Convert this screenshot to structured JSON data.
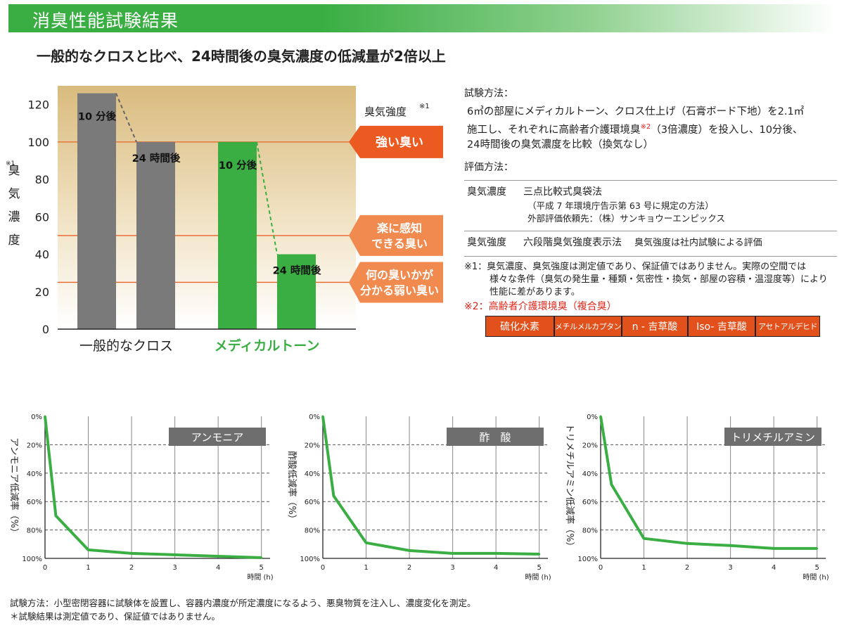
{
  "header": {
    "title": "消臭性能試験結果"
  },
  "headline": "一般的なクロスと比べ、24時間後の臭気濃度の低減量が2倍以上",
  "chart_data": [
    {
      "type": "bar",
      "y_label": "臭気濃度",
      "y_label_note": "※1",
      "ylim": [
        0,
        130
      ],
      "y_ticks": [
        "0",
        "20",
        "40",
        "60",
        "80",
        "100",
        "120"
      ],
      "groups": [
        {
          "name": "一般的なクロス",
          "color": "#7a7a7a",
          "bars": [
            {
              "label": "10 分後",
              "value": 126
            },
            {
              "label": "24 時間後",
              "value": 100
            }
          ]
        },
        {
          "name": "メディカルトーン",
          "color": "#3aae43",
          "bars": [
            {
              "label": "10 分後",
              "value": 100
            },
            {
              "label": "24 時間後",
              "value": 40
            }
          ]
        }
      ],
      "intensity_title": "臭気強度",
      "intensity_note": "※1",
      "intensity_levels": [
        {
          "value": 100,
          "line1": "強い臭い",
          "line2": ""
        },
        {
          "value": 50,
          "line1": "楽に感知",
          "line2": "できる臭い"
        },
        {
          "value": 25,
          "line1": "何の臭いかが",
          "line2": "分かる弱い臭い"
        }
      ]
    },
    {
      "type": "line",
      "title": "アンモニア",
      "ylabel": "アンモニア低減率（%）",
      "xlabel": "時間 (h)",
      "x_ticks": [
        "0",
        "1",
        "2",
        "3",
        "4",
        "5"
      ],
      "y_ticks": [
        "0%",
        "20%",
        "40%",
        "60%",
        "80%",
        "100%"
      ],
      "x": [
        0,
        0.25,
        1,
        2,
        3,
        4,
        5
      ],
      "y": [
        0,
        70,
        94,
        96.5,
        97.5,
        98.5,
        99.5
      ],
      "xlim": [
        0,
        5.2
      ],
      "ylim": [
        0,
        100
      ]
    },
    {
      "type": "line",
      "title": "酢　酸",
      "ylabel": "酢酸低減率（%）",
      "xlabel": "時間 (h)",
      "x_ticks": [
        "0",
        "1",
        "2",
        "3",
        "4",
        "5"
      ],
      "y_ticks": [
        "0%",
        "20%",
        "40%",
        "60%",
        "80%",
        "100%"
      ],
      "x": [
        0,
        0.25,
        1,
        2,
        3,
        4,
        5
      ],
      "y": [
        0,
        56,
        89,
        94.5,
        96.5,
        96.5,
        97
      ],
      "xlim": [
        0,
        5.2
      ],
      "ylim": [
        0,
        100
      ]
    },
    {
      "type": "line",
      "title": "トリメチルアミン",
      "ylabel": "トリメチルアミン低減率（%）",
      "xlabel": "時間 (h)",
      "x_ticks": [
        "0",
        "1",
        "2",
        "3",
        "4",
        "5"
      ],
      "y_ticks": [
        "0%",
        "20%",
        "40%",
        "60%",
        "80%",
        "100%"
      ],
      "x": [
        0,
        0.25,
        1,
        2,
        3,
        4,
        5
      ],
      "y": [
        0,
        48,
        86,
        89.5,
        91,
        93,
        93
      ],
      "xlim": [
        0,
        5.2
      ],
      "ylim": [
        0,
        100
      ]
    }
  ],
  "info": {
    "method_title": "試験方法：",
    "method_l1": "6㎥の部屋にメディカルトーン、クロス仕上げ（石膏ボード下地）を2.1㎡",
    "method_l2a": "施工し、それぞれに高齢者介護環境臭",
    "method_l2note": "※2",
    "method_l2b": "（3倍濃度）を投入し、10分後、",
    "method_l3": "24時間後の臭気濃度を比較（換気なし）",
    "eval_title": "評価方法：",
    "conc_key": "臭気濃度",
    "conc_val": "三点比較式臭袋法",
    "conc_sub1": "（平成 7 年環境庁告示第 63 号に規定の方法）",
    "conc_sub2": "外部評価依頼先：（株）サンキョウーエンピックス",
    "int_key": "臭気強度",
    "int_val": "六段階臭気強度表示法",
    "int_note": "臭気強度は社内試験による評価",
    "note1_mark": "※1：",
    "note1_l1": "臭気濃度、臭気強度は測定値であり、保証値ではありません。実際の空間では",
    "note1_l2": "様々な条件（臭気の発生量・種類・気密性・換気・部屋の容積・温湿度等）により",
    "note1_l3": "性能に差があります。",
    "note2": "※2：高齢者介護環境臭（複合臭）",
    "chemicals": [
      "硫化水素",
      "メチルメルカプタン",
      "n - 吉草酸",
      "Iso- 吉草酸",
      "アセトアルデヒド"
    ]
  },
  "footer": {
    "line1": "試験方法：小型密閉容器に試験体を設置し、容器内濃度が所定濃度になるよう、悪臭物質を注入し、濃度変化を測定。",
    "line2": "＊試験結果は測定値であり、保証値ではありません。"
  }
}
